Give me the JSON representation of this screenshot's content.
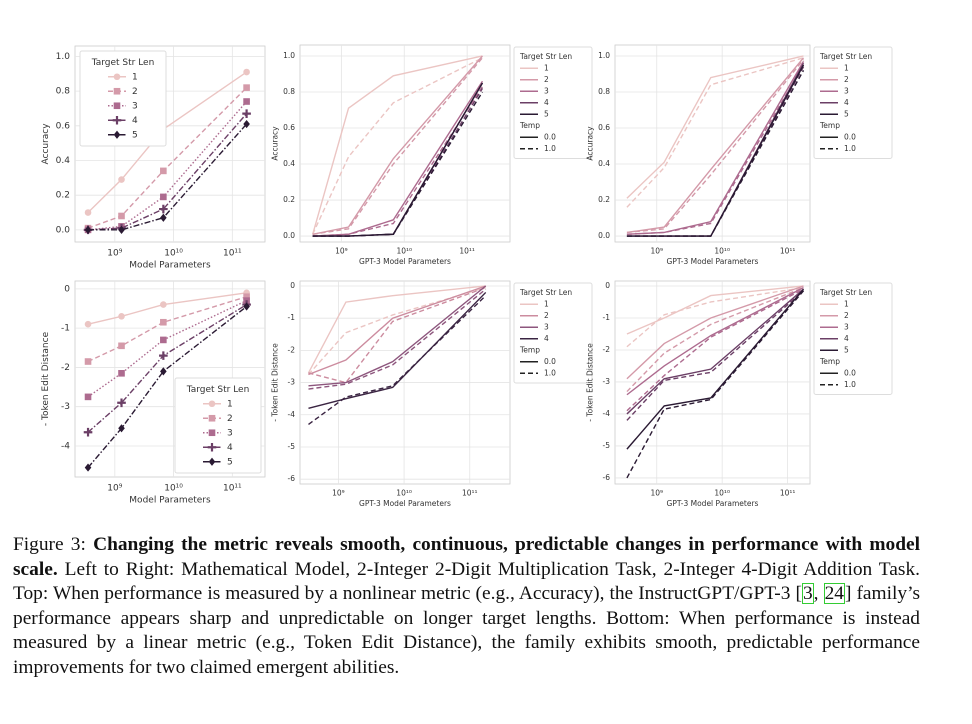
{
  "chart_data": [
    {
      "type": "line",
      "xlabel": "Model Parameters",
      "ylabel": "Accuracy",
      "xscale": "log",
      "grid": true,
      "legend_loc": "upper left",
      "legend_title": "Target Str Len",
      "x": [
        350000000,
        1300000000,
        6700000000,
        175000000000
      ],
      "xlim": [
        210000000,
        360000000000
      ],
      "xticks": [
        {
          "value": 1000000000,
          "label": "10⁹"
        },
        {
          "value": 10000000000,
          "label": "10¹⁰"
        },
        {
          "value": 100000000000,
          "label": "10¹¹"
        }
      ],
      "ylim": [
        -0.07,
        1.06
      ],
      "yticks": [
        {
          "value": 0,
          "label": "0.0"
        },
        0.2,
        0.4,
        0.6,
        0.8,
        {
          "value": 1,
          "label": "1.0"
        }
      ],
      "series": [
        {
          "name": "1",
          "color": "#ebc5c3",
          "dash": "solid",
          "marker": "circle",
          "values": [
            0.1,
            0.29,
            0.58,
            0.91
          ]
        },
        {
          "name": "2",
          "color": "#d49aa9",
          "dash": "dashed",
          "marker": "square",
          "values": [
            0.01,
            0.08,
            0.34,
            0.82
          ]
        },
        {
          "name": "3",
          "color": "#ad6b8f",
          "dash": "dotted",
          "marker": "square",
          "values": [
            0.0,
            0.02,
            0.19,
            0.74
          ]
        },
        {
          "name": "4",
          "color": "#6b3f66",
          "dash": "dashdot",
          "marker": "plus",
          "values": [
            0.0,
            0.01,
            0.12,
            0.67
          ]
        },
        {
          "name": "5",
          "color": "#2a1a33",
          "dash": "dashdot",
          "marker": "diamond",
          "values": [
            0.0,
            0.0,
            0.07,
            0.61
          ]
        }
      ]
    },
    {
      "type": "line",
      "xlabel": "GPT-3 Model Parameters",
      "ylabel": "Accuracy",
      "xscale": "log",
      "grid": true,
      "legend_loc": "outside right",
      "x": [
        350000000,
        1300000000,
        6700000000,
        175000000000
      ],
      "xlim": [
        220000000,
        480000000000
      ],
      "xticks": [
        {
          "value": 1000000000,
          "label": "10⁹"
        },
        {
          "value": 10000000000,
          "label": "10¹⁰"
        },
        {
          "value": 100000000000,
          "label": "10¹¹"
        }
      ],
      "ylim": [
        -0.033,
        1.061
      ],
      "yticks": [
        {
          "value": 0,
          "label": "0.0"
        },
        0.2,
        0.4,
        0.6,
        0.8,
        {
          "value": 1,
          "label": "1.0"
        }
      ],
      "legend": {
        "hue_title": "Target Str Len",
        "hue": [
          {
            "label": "1",
            "color": "#ebc5c3"
          },
          {
            "label": "2",
            "color": "#d49aa9"
          },
          {
            "label": "3",
            "color": "#ad6b8f"
          },
          {
            "label": "4",
            "color": "#6b3f66"
          },
          {
            "label": "5",
            "color": "#2a1a33"
          }
        ],
        "style_title": "Temp",
        "style": [
          {
            "label": "0.0",
            "dash": "solid"
          },
          {
            "label": "1.0",
            "dash": "dashed"
          }
        ]
      },
      "series": [
        {
          "color": "#ebc5c3",
          "dash": "solid",
          "values": [
            0.01,
            0.71,
            0.89,
            1.0
          ]
        },
        {
          "color": "#ebc5c3",
          "dash": "dashed",
          "values": [
            0.01,
            0.44,
            0.74,
            0.99
          ]
        },
        {
          "color": "#d49aa9",
          "dash": "solid",
          "values": [
            0.01,
            0.05,
            0.43,
            1.0
          ]
        },
        {
          "color": "#d49aa9",
          "dash": "dashed",
          "values": [
            0.01,
            0.04,
            0.4,
            0.99
          ]
        },
        {
          "color": "#ad6b8f",
          "dash": "solid",
          "values": [
            0.0,
            0.01,
            0.09,
            0.86
          ]
        },
        {
          "color": "#ad6b8f",
          "dash": "dashed",
          "values": [
            0.0,
            0.01,
            0.07,
            0.83
          ]
        },
        {
          "color": "#6b3f66",
          "dash": "solid",
          "values": [
            0.0,
            0.0,
            0.01,
            0.85
          ]
        },
        {
          "color": "#6b3f66",
          "dash": "dashed",
          "values": [
            0.0,
            0.0,
            0.01,
            0.82
          ]
        },
        {
          "color": "#2a1a33",
          "dash": "solid",
          "values": [
            0.0,
            0.0,
            0.01,
            0.85
          ]
        },
        {
          "color": "#2a1a33",
          "dash": "dashed",
          "values": [
            0.0,
            0.0,
            0.01,
            0.8
          ]
        }
      ]
    },
    {
      "type": "line",
      "xlabel": "GPT-3 Model Parameters",
      "ylabel": "Accuracy",
      "xscale": "log",
      "grid": true,
      "legend_loc": "outside right",
      "x": [
        350000000,
        1300000000,
        6700000000,
        175000000000
      ],
      "xlim": [
        230000000,
        220000000000
      ],
      "xticks": [
        {
          "value": 1000000000,
          "label": "10⁹"
        },
        {
          "value": 10000000000,
          "label": "10¹⁰"
        },
        {
          "value": 100000000000,
          "label": "10¹¹"
        }
      ],
      "ylim": [
        -0.033,
        1.061
      ],
      "yticks": [
        {
          "value": 0,
          "label": "0.0"
        },
        0.2,
        0.4,
        0.6,
        0.8,
        {
          "value": 1,
          "label": "1.0"
        }
      ],
      "legend": {
        "hue_title": "Target Str Len",
        "hue": [
          {
            "label": "1",
            "color": "#ebc5c3"
          },
          {
            "label": "2",
            "color": "#d49aa9"
          },
          {
            "label": "3",
            "color": "#ad6b8f"
          },
          {
            "label": "4",
            "color": "#6b3f66"
          },
          {
            "label": "5",
            "color": "#2a1a33"
          }
        ],
        "style_title": "Temp",
        "style": [
          {
            "label": "0.0",
            "dash": "solid"
          },
          {
            "label": "1.0",
            "dash": "dashed"
          }
        ]
      },
      "series": [
        {
          "color": "#ebc5c3",
          "dash": "solid",
          "values": [
            0.21,
            0.41,
            0.88,
            1.0
          ]
        },
        {
          "color": "#ebc5c3",
          "dash": "dashed",
          "values": [
            0.16,
            0.38,
            0.84,
            0.99
          ]
        },
        {
          "color": "#d49aa9",
          "dash": "solid",
          "values": [
            0.02,
            0.05,
            0.37,
            0.99
          ]
        },
        {
          "color": "#d49aa9",
          "dash": "dashed",
          "values": [
            0.02,
            0.04,
            0.34,
            0.98
          ]
        },
        {
          "color": "#ad6b8f",
          "dash": "solid",
          "values": [
            0.01,
            0.02,
            0.08,
            0.97
          ]
        },
        {
          "color": "#ad6b8f",
          "dash": "dashed",
          "values": [
            0.01,
            0.02,
            0.07,
            0.95
          ]
        },
        {
          "color": "#6b3f66",
          "dash": "solid",
          "values": [
            0.0,
            0.0,
            0.0,
            0.96
          ]
        },
        {
          "color": "#6b3f66",
          "dash": "dashed",
          "values": [
            0.0,
            0.0,
            0.0,
            0.94
          ]
        },
        {
          "color": "#2a1a33",
          "dash": "solid",
          "values": [
            0.0,
            0.0,
            0.0,
            0.95
          ]
        },
        {
          "color": "#2a1a33",
          "dash": "dashed",
          "values": [
            0.0,
            0.0,
            0.0,
            0.92
          ]
        }
      ]
    },
    {
      "type": "line",
      "xlabel": "Model Parameters",
      "ylabel": "- Token Edit Distance",
      "xscale": "log",
      "grid": true,
      "legend_loc": "lower right",
      "legend_title": "Target Str Len",
      "x": [
        350000000,
        1300000000,
        6700000000,
        175000000000
      ],
      "xlim": [
        210000000,
        360000000000
      ],
      "xticks": [
        {
          "value": 1000000000,
          "label": "10⁹"
        },
        {
          "value": 10000000000,
          "label": "10¹⁰"
        },
        {
          "value": 100000000000,
          "label": "10¹¹"
        }
      ],
      "ylim": [
        -4.79,
        0.2
      ],
      "yticks": [
        0,
        -1,
        -2,
        -3,
        -4
      ],
      "series": [
        {
          "name": "1",
          "color": "#ebc5c3",
          "dash": "solid",
          "marker": "circle",
          "values": [
            -0.9,
            -0.7,
            -0.4,
            -0.1
          ]
        },
        {
          "name": "2",
          "color": "#d49aa9",
          "dash": "dashed",
          "marker": "square",
          "values": [
            -1.85,
            -1.45,
            -0.85,
            -0.2
          ]
        },
        {
          "name": "3",
          "color": "#ad6b8f",
          "dash": "dotted",
          "marker": "square",
          "values": [
            -2.75,
            -2.15,
            -1.3,
            -0.3
          ]
        },
        {
          "name": "4",
          "color": "#6b3f66",
          "dash": "dashdot",
          "marker": "plus",
          "values": [
            -3.65,
            -2.9,
            -1.7,
            -0.4
          ]
        },
        {
          "name": "5",
          "color": "#2a1a33",
          "dash": "dashdot",
          "marker": "diamond",
          "values": [
            -4.55,
            -3.55,
            -2.1,
            -0.45
          ]
        }
      ]
    },
    {
      "type": "line",
      "xlabel": "GPT-3 Model Parameters",
      "ylabel": "- Token Edit Distance",
      "xscale": "log",
      "grid": true,
      "legend_loc": "outside right",
      "x": [
        350000000,
        1300000000,
        6700000000,
        175000000000
      ],
      "xlim": [
        260000000,
        410000000000
      ],
      "xticks": [
        {
          "value": 1000000000,
          "label": "10⁹"
        },
        {
          "value": 10000000000,
          "label": "10¹⁰"
        },
        {
          "value": 100000000000,
          "label": "10¹¹"
        }
      ],
      "ylim": [
        -6.15,
        0.155
      ],
      "yticks": [
        0,
        -1,
        -2,
        -3,
        -4,
        -5,
        -6
      ],
      "legend": {
        "hue_title": "Target Str Len",
        "hue": [
          {
            "label": "1",
            "color": "#ebc5c3"
          },
          {
            "label": "2",
            "color": "#cc8c9f"
          },
          {
            "label": "3",
            "color": "#8d567d"
          },
          {
            "label": "4",
            "color": "#3a2442"
          }
        ],
        "style_title": "Temp",
        "style": [
          {
            "label": "0.0",
            "dash": "solid"
          },
          {
            "label": "1.0",
            "dash": "dashed"
          }
        ]
      },
      "series": [
        {
          "color": "#ebc5c3",
          "dash": "solid",
          "values": [
            -2.7,
            -0.5,
            -0.3,
            0.0
          ]
        },
        {
          "color": "#ebc5c3",
          "dash": "dashed",
          "values": [
            -2.75,
            -1.45,
            -0.9,
            -0.05
          ]
        },
        {
          "color": "#cc8c9f",
          "dash": "solid",
          "values": [
            -2.75,
            -2.3,
            -1.0,
            0.0
          ]
        },
        {
          "color": "#cc8c9f",
          "dash": "dashed",
          "values": [
            -2.7,
            -3.0,
            -1.1,
            -0.05
          ]
        },
        {
          "color": "#8d567d",
          "dash": "solid",
          "values": [
            -3.1,
            -3.0,
            -2.35,
            0.0
          ]
        },
        {
          "color": "#8d567d",
          "dash": "dashed",
          "values": [
            -3.2,
            -3.05,
            -2.45,
            -0.1
          ]
        },
        {
          "color": "#3a2442",
          "dash": "solid",
          "values": [
            -3.8,
            -3.5,
            -3.15,
            -0.2
          ]
        },
        {
          "color": "#3a2442",
          "dash": "dashed",
          "values": [
            -4.3,
            -3.45,
            -3.1,
            -0.3
          ]
        }
      ]
    },
    {
      "type": "line",
      "xlabel": "GPT-3 Model Parameters",
      "ylabel": "- Token Edit Distance",
      "xscale": "log",
      "grid": true,
      "legend_loc": "outside right",
      "x": [
        350000000,
        1300000000,
        6700000000,
        175000000000
      ],
      "xlim": [
        230000000,
        220000000000
      ],
      "xticks": [
        {
          "value": 1000000000,
          "label": "10⁹"
        },
        {
          "value": 10000000000,
          "label": "10¹⁰"
        },
        {
          "value": 100000000000,
          "label": "10¹¹"
        }
      ],
      "ylim": [
        -6.19,
        0.156
      ],
      "yticks": [
        0,
        -1,
        -2,
        -3,
        -4,
        -5,
        -6
      ],
      "legend": {
        "hue_title": "Target Str Len",
        "hue": [
          {
            "label": "1",
            "color": "#ebc5c3"
          },
          {
            "label": "2",
            "color": "#d49aa9"
          },
          {
            "label": "3",
            "color": "#ad6b8f"
          },
          {
            "label": "4",
            "color": "#6b3f66"
          },
          {
            "label": "5",
            "color": "#2a1a33"
          }
        ],
        "style_title": "Temp",
        "style": [
          {
            "label": "0.0",
            "dash": "solid"
          },
          {
            "label": "1.0",
            "dash": "dashed"
          }
        ]
      },
      "series": [
        {
          "color": "#ebc5c3",
          "dash": "solid",
          "values": [
            -1.5,
            -1.0,
            -0.3,
            0.0
          ]
        },
        {
          "color": "#ebc5c3",
          "dash": "dashed",
          "values": [
            -1.9,
            -0.9,
            -0.5,
            -0.05
          ]
        },
        {
          "color": "#d49aa9",
          "dash": "solid",
          "values": [
            -2.9,
            -1.8,
            -1.0,
            0.0
          ]
        },
        {
          "color": "#d49aa9",
          "dash": "dashed",
          "values": [
            -3.3,
            -2.1,
            -1.2,
            -0.05
          ]
        },
        {
          "color": "#ad6b8f",
          "dash": "solid",
          "values": [
            -3.4,
            -2.5,
            -1.55,
            -0.05
          ]
        },
        {
          "color": "#ad6b8f",
          "dash": "dashed",
          "values": [
            -3.9,
            -2.8,
            -1.6,
            -0.1
          ]
        },
        {
          "color": "#6b3f66",
          "dash": "solid",
          "values": [
            -4.0,
            -2.9,
            -2.6,
            -0.1
          ]
        },
        {
          "color": "#6b3f66",
          "dash": "dashed",
          "values": [
            -4.2,
            -2.95,
            -2.7,
            -0.15
          ]
        },
        {
          "color": "#2a1a33",
          "dash": "solid",
          "values": [
            -5.1,
            -3.75,
            -3.5,
            -0.1
          ]
        },
        {
          "color": "#2a1a33",
          "dash": "dashed",
          "values": [
            -6.0,
            -3.85,
            -3.55,
            -0.15
          ]
        }
      ]
    }
  ],
  "caption": {
    "segments": [
      {
        "text": "Figure 3: ",
        "style": "normal"
      },
      {
        "text": "Changing the metric reveals smooth, continuous, predictable changes in performance with model scale.",
        "style": "bold"
      },
      {
        "text": " Left to Right: Mathematical Model, 2-Integer 2-Digit Multiplication Task, 2-Integer 4-Digit Addition Task. Top: When performance is measured by a nonlinear metric (e.g., Accuracy), the InstructGPT/GPT-3 [",
        "style": "normal"
      },
      {
        "text": "3",
        "style": "ref"
      },
      {
        "text": ", ",
        "style": "normal"
      },
      {
        "text": "24",
        "style": "ref"
      },
      {
        "text": "] family’s performance appears sharp and unpredictable on longer target lengths. Bottom: When performance is instead measured by a linear metric (e.g., Token Edit Distance), the family exhibits smooth, predictable performance improvements for two claimed emergent abilities.",
        "style": "normal"
      }
    ]
  }
}
